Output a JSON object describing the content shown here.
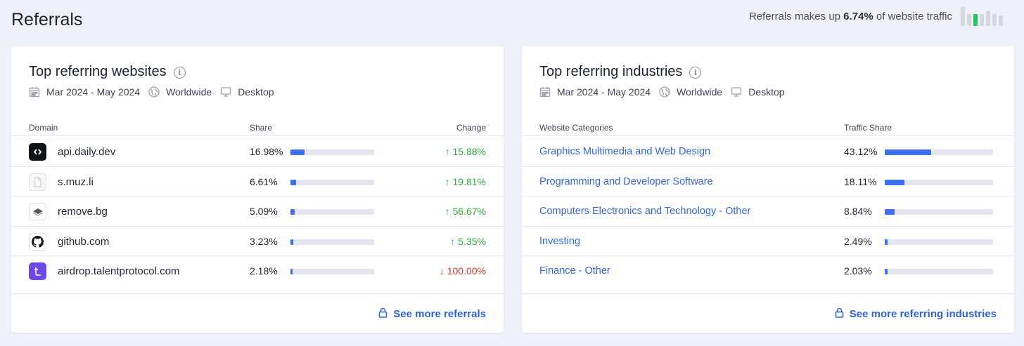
{
  "page": {
    "title": "Referrals",
    "traffic_prefix": "Referrals makes up ",
    "traffic_value": "6.74%",
    "traffic_suffix": " of website traffic",
    "mini_chart_levels": [
      1.0,
      0.62,
      0.62,
      0.62,
      0.78,
      0.62,
      0.55
    ],
    "mini_chart_highlight_index": 2,
    "colors": {
      "accent": "#3d6ff2",
      "highlight": "#22c55e",
      "up": "#2eaa3c",
      "down": "#e0362f",
      "link": "#3366e0"
    }
  },
  "websites": {
    "title": "Top referring websites",
    "date_range": "Mar 2024 - May 2024",
    "region": "Worldwide",
    "device": "Desktop",
    "columns": {
      "domain": "Domain",
      "share": "Share",
      "change": "Change"
    },
    "rows": [
      {
        "domain": "api.daily.dev",
        "share": "16.98%",
        "share_value": 16.98,
        "change": "15.88%",
        "direction": "up",
        "icon": "daily-dev-icon"
      },
      {
        "domain": "s.muz.li",
        "share": "6.61%",
        "share_value": 6.61,
        "change": "19.81%",
        "direction": "up",
        "icon": "blank-page-icon"
      },
      {
        "domain": "remove.bg",
        "share": "5.09%",
        "share_value": 5.09,
        "change": "56.67%",
        "direction": "up",
        "icon": "remove-bg-icon"
      },
      {
        "domain": "github.com",
        "share": "3.23%",
        "share_value": 3.23,
        "change": "5.35%",
        "direction": "up",
        "icon": "github-icon"
      },
      {
        "domain": "airdrop.talentprotocol.com",
        "share": "2.18%",
        "share_value": 2.18,
        "change": "100.00%",
        "direction": "down",
        "icon": "talent-protocol-icon"
      }
    ],
    "footer_link": "See more referrals"
  },
  "industries": {
    "title": "Top referring industries",
    "date_range": "Mar 2024 - May 2024",
    "region": "Worldwide",
    "device": "Desktop",
    "columns": {
      "category": "Website Categories",
      "share": "Traffic Share"
    },
    "rows": [
      {
        "category": "Graphics Multimedia and Web Design",
        "share": "43.12%",
        "share_value": 43.12
      },
      {
        "category": "Programming and Developer Software",
        "share": "18.11%",
        "share_value": 18.11
      },
      {
        "category": "Computers Electronics and Technology - Other",
        "share": "8.84%",
        "share_value": 8.84
      },
      {
        "category": "Investing",
        "share": "2.49%",
        "share_value": 2.49
      },
      {
        "category": "Finance - Other",
        "share": "2.03%",
        "share_value": 2.03
      }
    ],
    "footer_link": "See more referring industries"
  }
}
